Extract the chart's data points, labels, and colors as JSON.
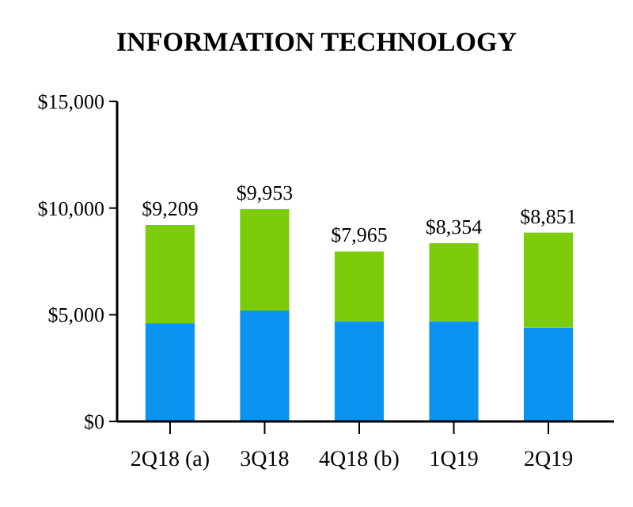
{
  "chart_data": {
    "type": "bar",
    "title": "INFORMATION TECHNOLOGY",
    "stacked": true,
    "categories": [
      "2Q18 (a)",
      "3Q18",
      "4Q18 (b)",
      "1Q19",
      "2Q19"
    ],
    "series": [
      {
        "color": "#0a93f0",
        "values": [
          4600,
          5200,
          4700,
          4700,
          4400
        ]
      },
      {
        "color": "#7dcc0a",
        "values": [
          4609,
          4753,
          3265,
          3654,
          4451
        ]
      }
    ],
    "totals": [
      "$9,209",
      "$9,953",
      "$7,965",
      "$8,354",
      "$8,851"
    ],
    "ylim": [
      0,
      15000
    ],
    "yticks": [
      {
        "value": 0,
        "label": "$0"
      },
      {
        "value": 5000,
        "label": "$5,000"
      },
      {
        "value": 10000,
        "label": "$10,000"
      },
      {
        "value": 15000,
        "label": "$15,000"
      }
    ]
  }
}
